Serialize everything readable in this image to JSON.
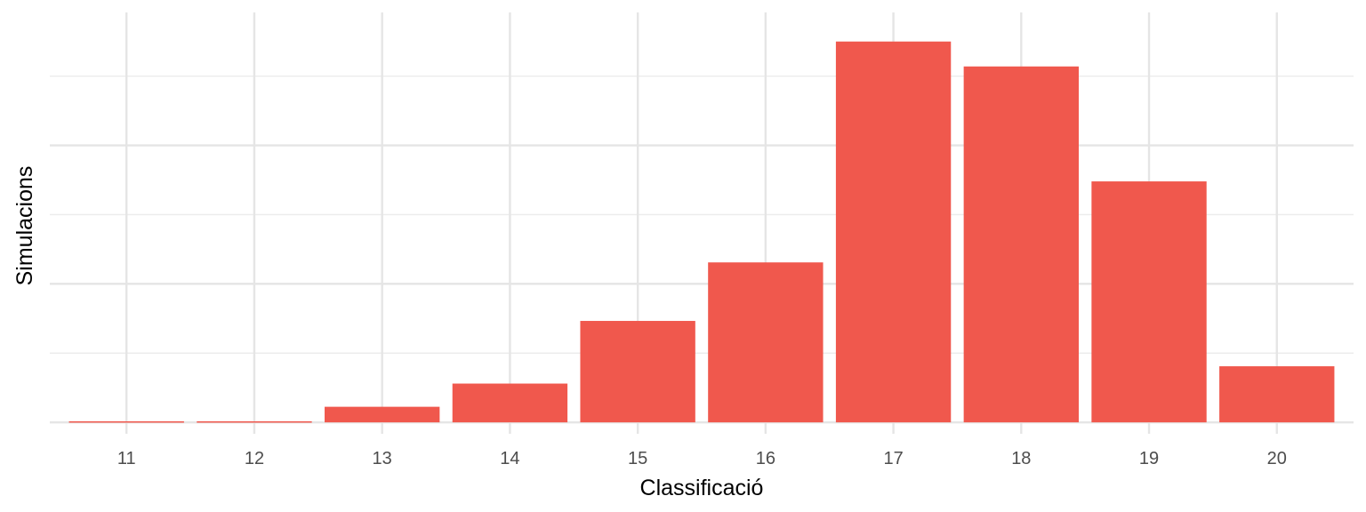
{
  "chart_data": {
    "type": "bar",
    "title": "",
    "xlabel": "Classificació",
    "ylabel": "Simulacions",
    "categories": [
      "11",
      "12",
      "13",
      "14",
      "15",
      "16",
      "17",
      "18",
      "19",
      "20"
    ],
    "values": [
      0.3,
      0.3,
      4.5,
      11.2,
      29.3,
      46.2,
      110,
      102.8,
      69.6,
      16.2
    ],
    "ylim": [
      -3.3,
      118.4
    ],
    "y_ticks_labeled": false,
    "grid": true,
    "legend": "none",
    "colors": {
      "bar": "#f0584d",
      "grid": "#e5e5e5",
      "tick_text": "#4d4d4d",
      "axis_title": "#000000",
      "background": "#ffffff"
    }
  }
}
